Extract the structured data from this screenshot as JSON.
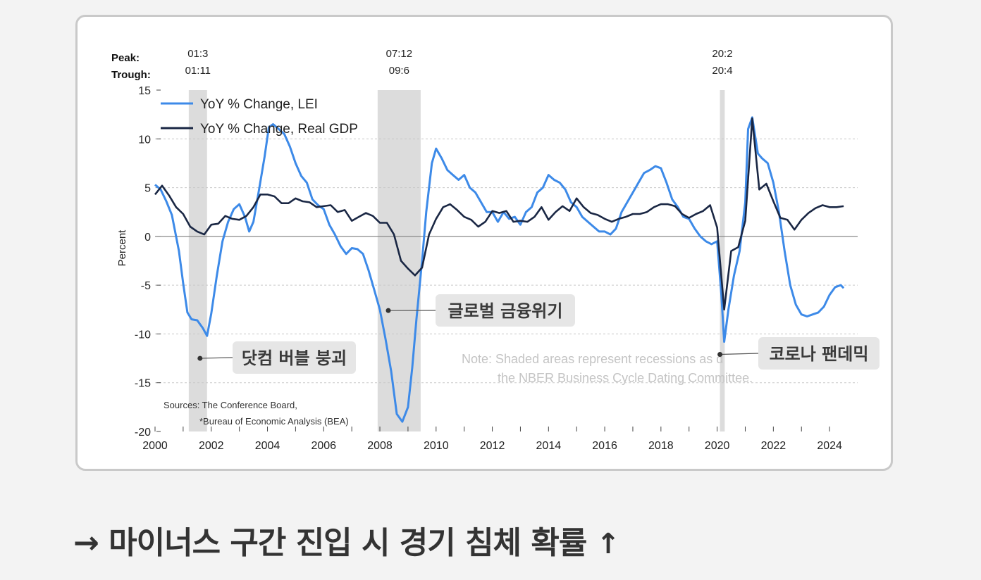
{
  "chart_data": {
    "type": "line",
    "ylabel": "Percent",
    "ylim": [
      -20,
      15
    ],
    "yticks": [
      15,
      10,
      5,
      0,
      -5,
      -10,
      -15,
      -20
    ],
    "xlim": [
      2000,
      2025
    ],
    "xtick_labels": [
      "2000",
      "2002",
      "2004",
      "2006",
      "2008",
      "2010",
      "2012",
      "2014",
      "2016",
      "2018",
      "2020",
      "2022",
      "2024"
    ],
    "peak_label": "Peak:",
    "trough_label": "Trough:",
    "recessions": [
      {
        "peak": "01:3",
        "trough": "01:11",
        "start": 2001.2,
        "end": 2001.85
      },
      {
        "peak": "07:12",
        "trough": "09:6",
        "start": 2007.92,
        "end": 2009.45
      },
      {
        "peak": "20:2",
        "trough": "20:4",
        "start": 2020.1,
        "end": 2020.27
      }
    ],
    "series": [
      {
        "name": "YoY % Change, LEI",
        "color": "#3d8ae8",
        "points": [
          [
            2000.0,
            5.3
          ],
          [
            2000.2,
            4.8
          ],
          [
            2000.4,
            3.6
          ],
          [
            2000.6,
            2.2
          ],
          [
            2000.85,
            -1.5
          ],
          [
            2001.0,
            -4.8
          ],
          [
            2001.15,
            -7.8
          ],
          [
            2001.3,
            -8.5
          ],
          [
            2001.5,
            -8.6
          ],
          [
            2001.7,
            -9.4
          ],
          [
            2001.85,
            -10.2
          ],
          [
            2002.0,
            -7.9
          ],
          [
            2002.2,
            -4.0
          ],
          [
            2002.4,
            -0.5
          ],
          [
            2002.6,
            1.5
          ],
          [
            2002.8,
            2.8
          ],
          [
            2003.0,
            3.3
          ],
          [
            2003.2,
            2.0
          ],
          [
            2003.35,
            0.5
          ],
          [
            2003.5,
            1.5
          ],
          [
            2003.7,
            4.8
          ],
          [
            2003.9,
            8.2
          ],
          [
            2004.05,
            11.2
          ],
          [
            2004.2,
            11.5
          ],
          [
            2004.4,
            11.0
          ],
          [
            2004.6,
            10.5
          ],
          [
            2004.8,
            9.2
          ],
          [
            2005.0,
            7.5
          ],
          [
            2005.2,
            6.2
          ],
          [
            2005.4,
            5.5
          ],
          [
            2005.6,
            3.8
          ],
          [
            2005.8,
            3.2
          ],
          [
            2006.0,
            2.8
          ],
          [
            2006.2,
            1.2
          ],
          [
            2006.4,
            0.2
          ],
          [
            2006.6,
            -1.0
          ],
          [
            2006.8,
            -1.8
          ],
          [
            2007.0,
            -1.2
          ],
          [
            2007.2,
            -1.3
          ],
          [
            2007.4,
            -1.8
          ],
          [
            2007.6,
            -3.5
          ],
          [
            2007.8,
            -5.5
          ],
          [
            2008.0,
            -7.5
          ],
          [
            2008.2,
            -10.5
          ],
          [
            2008.4,
            -13.8
          ],
          [
            2008.6,
            -18.2
          ],
          [
            2008.8,
            -19.0
          ],
          [
            2009.0,
            -17.5
          ],
          [
            2009.15,
            -13.5
          ],
          [
            2009.3,
            -8.5
          ],
          [
            2009.5,
            -2.5
          ],
          [
            2009.65,
            2.5
          ],
          [
            2009.85,
            7.5
          ],
          [
            2010.0,
            9.0
          ],
          [
            2010.2,
            8.0
          ],
          [
            2010.4,
            6.8
          ],
          [
            2010.6,
            6.3
          ],
          [
            2010.8,
            5.8
          ],
          [
            2011.0,
            6.3
          ],
          [
            2011.2,
            5.0
          ],
          [
            2011.4,
            4.5
          ],
          [
            2011.6,
            3.5
          ],
          [
            2011.8,
            2.5
          ],
          [
            2012.0,
            2.5
          ],
          [
            2012.2,
            1.5
          ],
          [
            2012.4,
            2.5
          ],
          [
            2012.6,
            1.8
          ],
          [
            2012.8,
            2.0
          ],
          [
            2013.0,
            1.2
          ],
          [
            2013.2,
            2.5
          ],
          [
            2013.4,
            3.0
          ],
          [
            2013.6,
            4.5
          ],
          [
            2013.8,
            5.0
          ],
          [
            2014.0,
            6.3
          ],
          [
            2014.2,
            5.8
          ],
          [
            2014.4,
            5.5
          ],
          [
            2014.6,
            4.8
          ],
          [
            2014.8,
            3.5
          ],
          [
            2015.0,
            3.0
          ],
          [
            2015.2,
            2.0
          ],
          [
            2015.4,
            1.5
          ],
          [
            2015.6,
            1.0
          ],
          [
            2015.8,
            0.5
          ],
          [
            2016.0,
            0.5
          ],
          [
            2016.2,
            0.2
          ],
          [
            2016.4,
            0.8
          ],
          [
            2016.6,
            2.5
          ],
          [
            2016.8,
            3.5
          ],
          [
            2017.0,
            4.5
          ],
          [
            2017.2,
            5.5
          ],
          [
            2017.4,
            6.5
          ],
          [
            2017.6,
            6.8
          ],
          [
            2017.8,
            7.2
          ],
          [
            2018.0,
            7.0
          ],
          [
            2018.2,
            5.5
          ],
          [
            2018.4,
            3.8
          ],
          [
            2018.6,
            3.0
          ],
          [
            2018.8,
            2.0
          ],
          [
            2019.0,
            1.8
          ],
          [
            2019.2,
            0.8
          ],
          [
            2019.4,
            0.0
          ],
          [
            2019.6,
            -0.5
          ],
          [
            2019.8,
            -0.8
          ],
          [
            2020.0,
            -0.5
          ],
          [
            2020.15,
            -6.0
          ],
          [
            2020.25,
            -10.8
          ],
          [
            2020.4,
            -7.5
          ],
          [
            2020.6,
            -4.0
          ],
          [
            2020.8,
            -1.5
          ],
          [
            2021.0,
            3.5
          ],
          [
            2021.1,
            11.0
          ],
          [
            2021.25,
            12.2
          ],
          [
            2021.45,
            8.5
          ],
          [
            2021.6,
            8.0
          ],
          [
            2021.8,
            7.5
          ],
          [
            2022.0,
            5.5
          ],
          [
            2022.2,
            2.5
          ],
          [
            2022.4,
            -1.5
          ],
          [
            2022.6,
            -5.0
          ],
          [
            2022.8,
            -7.0
          ],
          [
            2023.0,
            -8.0
          ],
          [
            2023.2,
            -8.2
          ],
          [
            2023.4,
            -8.0
          ],
          [
            2023.6,
            -7.8
          ],
          [
            2023.8,
            -7.2
          ],
          [
            2024.0,
            -6.0
          ],
          [
            2024.2,
            -5.2
          ],
          [
            2024.4,
            -5.0
          ],
          [
            2024.5,
            -5.3
          ]
        ]
      },
      {
        "name": "YoY % Change, Real GDP",
        "color": "#1a2744",
        "points": [
          [
            2000.0,
            4.3
          ],
          [
            2000.25,
            5.2
          ],
          [
            2000.5,
            4.2
          ],
          [
            2000.75,
            3.0
          ],
          [
            2001.0,
            2.3
          ],
          [
            2001.25,
            1.0
          ],
          [
            2001.5,
            0.5
          ],
          [
            2001.75,
            0.2
          ],
          [
            2002.0,
            1.2
          ],
          [
            2002.25,
            1.3
          ],
          [
            2002.5,
            2.1
          ],
          [
            2002.75,
            1.8
          ],
          [
            2003.0,
            1.7
          ],
          [
            2003.25,
            2.1
          ],
          [
            2003.5,
            3.0
          ],
          [
            2003.75,
            4.3
          ],
          [
            2004.0,
            4.3
          ],
          [
            2004.25,
            4.1
          ],
          [
            2004.5,
            3.4
          ],
          [
            2004.75,
            3.4
          ],
          [
            2005.0,
            3.9
          ],
          [
            2005.25,
            3.6
          ],
          [
            2005.5,
            3.5
          ],
          [
            2005.75,
            3.0
          ],
          [
            2006.0,
            3.1
          ],
          [
            2006.25,
            3.2
          ],
          [
            2006.5,
            2.5
          ],
          [
            2006.75,
            2.7
          ],
          [
            2007.0,
            1.6
          ],
          [
            2007.25,
            2.0
          ],
          [
            2007.5,
            2.4
          ],
          [
            2007.75,
            2.1
          ],
          [
            2008.0,
            1.4
          ],
          [
            2008.25,
            1.4
          ],
          [
            2008.5,
            0.2
          ],
          [
            2008.75,
            -2.5
          ],
          [
            2009.0,
            -3.3
          ],
          [
            2009.25,
            -4.0
          ],
          [
            2009.5,
            -3.2
          ],
          [
            2009.75,
            0.2
          ],
          [
            2010.0,
            1.8
          ],
          [
            2010.25,
            3.0
          ],
          [
            2010.5,
            3.3
          ],
          [
            2010.75,
            2.7
          ],
          [
            2011.0,
            2.0
          ],
          [
            2011.25,
            1.7
          ],
          [
            2011.5,
            1.0
          ],
          [
            2011.75,
            1.5
          ],
          [
            2012.0,
            2.6
          ],
          [
            2012.25,
            2.4
          ],
          [
            2012.5,
            2.6
          ],
          [
            2012.75,
            1.5
          ],
          [
            2013.0,
            1.6
          ],
          [
            2013.25,
            1.5
          ],
          [
            2013.5,
            2.0
          ],
          [
            2013.75,
            3.0
          ],
          [
            2014.0,
            1.7
          ],
          [
            2014.25,
            2.5
          ],
          [
            2014.5,
            3.1
          ],
          [
            2014.75,
            2.6
          ],
          [
            2015.0,
            3.9
          ],
          [
            2015.25,
            3.0
          ],
          [
            2015.5,
            2.4
          ],
          [
            2015.75,
            2.2
          ],
          [
            2016.0,
            1.8
          ],
          [
            2016.25,
            1.5
          ],
          [
            2016.5,
            1.8
          ],
          [
            2016.75,
            2.0
          ],
          [
            2017.0,
            2.3
          ],
          [
            2017.25,
            2.3
          ],
          [
            2017.5,
            2.5
          ],
          [
            2017.75,
            3.0
          ],
          [
            2018.0,
            3.3
          ],
          [
            2018.25,
            3.3
          ],
          [
            2018.5,
            3.1
          ],
          [
            2018.75,
            2.3
          ],
          [
            2019.0,
            1.9
          ],
          [
            2019.25,
            2.3
          ],
          [
            2019.5,
            2.6
          ],
          [
            2019.75,
            3.2
          ],
          [
            2020.0,
            0.9
          ],
          [
            2020.25,
            -7.5
          ],
          [
            2020.5,
            -1.5
          ],
          [
            2020.75,
            -1.1
          ],
          [
            2021.0,
            1.6
          ],
          [
            2021.25,
            12.1
          ],
          [
            2021.5,
            4.8
          ],
          [
            2021.75,
            5.4
          ],
          [
            2022.0,
            3.6
          ],
          [
            2022.25,
            1.9
          ],
          [
            2022.5,
            1.7
          ],
          [
            2022.75,
            0.7
          ],
          [
            2023.0,
            1.7
          ],
          [
            2023.25,
            2.4
          ],
          [
            2023.5,
            2.9
          ],
          [
            2023.75,
            3.2
          ],
          [
            2024.0,
            3.0
          ],
          [
            2024.25,
            3.0
          ],
          [
            2024.5,
            3.1
          ]
        ]
      }
    ],
    "sources_line1": "Sources: The Conference Board,",
    "sources_line2": "*Bureau of Economic Analysis (BEA)",
    "note_line1": "Note: Shaded areas represent recessions as d",
    "note_line2": "the NBER Business Cycle Dating Committee.",
    "annotations": [
      {
        "text": "닷컴 버블 붕괴",
        "x": 2001.6,
        "y": -12.5
      },
      {
        "text": "글로벌 금융위기",
        "x": 2008.3,
        "y": -7.6
      },
      {
        "text": "코로나 팬데믹",
        "x": 2020.1,
        "y": -12.1
      }
    ]
  },
  "caption": {
    "text": "→ 마이너스 구간 진입 시 경기 침체 확률",
    "arrow": "↑"
  }
}
